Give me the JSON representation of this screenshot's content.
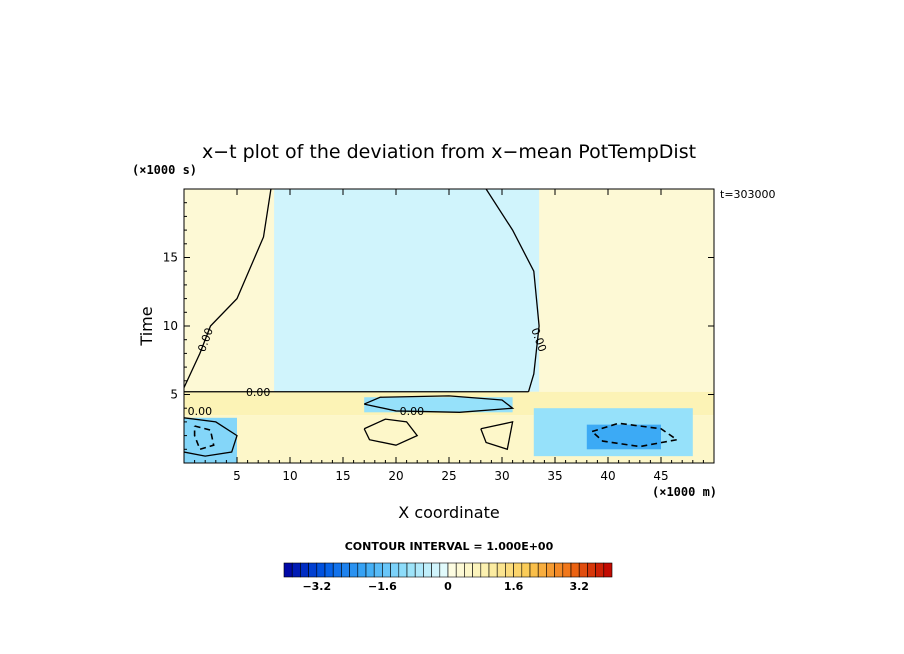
{
  "chart_data": {
    "type": "heatmap",
    "title": "x−t plot of the deviation from x−mean PotTempDist",
    "xlabel": "X coordinate",
    "ylabel": "Time",
    "x_unit": "(×1000 m)",
    "y_unit": "(×1000 s)",
    "timestamp": "t=303000",
    "xlim": [
      0,
      50
    ],
    "ylim": [
      0,
      20
    ],
    "x_ticks": [
      5,
      10,
      15,
      20,
      25,
      30,
      35,
      40,
      45
    ],
    "y_ticks": [
      5,
      10,
      15
    ],
    "contour_label": "0.00",
    "contour_interval_text": "CONTOUR INTERVAL = 1.000E+00",
    "colorbar": {
      "min": -4,
      "max": 4,
      "tick_values": [
        -3.2,
        -1.6,
        0,
        1.6,
        3.2
      ],
      "tick_labels": [
        "−3.2",
        "−1.6",
        "0",
        "1.6",
        "3.2"
      ]
    },
    "regions": [
      {
        "x0": 0,
        "x1": 50,
        "y0": 5.2,
        "y1": 20,
        "value": 0.3
      },
      {
        "x0": 8.5,
        "x1": 33.5,
        "y0": 5.2,
        "y1": 20,
        "value": -0.3
      },
      {
        "x0": 0,
        "x1": 50,
        "y0": 3.5,
        "y1": 5.2,
        "value": 0.8
      },
      {
        "x0": 0,
        "x1": 50,
        "y0": 0,
        "y1": 3.5,
        "value": 0.5
      },
      {
        "x0": 17,
        "x1": 31,
        "y0": 3.7,
        "y1": 4.8,
        "value": -1.0
      },
      {
        "x0": 0,
        "x1": 5,
        "y0": 0,
        "y1": 3.3,
        "value": -1.2
      },
      {
        "x0": 33,
        "x1": 48,
        "y0": 0.5,
        "y1": 4.0,
        "value": -1.0
      },
      {
        "x0": 38,
        "x1": 45,
        "y0": 1.0,
        "y1": 2.8,
        "value": -2.0
      }
    ],
    "contours": [
      {
        "value": 0,
        "style": "solid",
        "points": [
          [
            8.2,
            20
          ],
          [
            7.5,
            16.5
          ],
          [
            5,
            12
          ],
          [
            2.5,
            10
          ],
          [
            1.5,
            8
          ],
          [
            0,
            5.5
          ]
        ]
      },
      {
        "value": 0,
        "style": "solid",
        "points": [
          [
            28.5,
            20
          ],
          [
            31,
            17
          ],
          [
            33,
            14
          ],
          [
            33.5,
            10
          ],
          [
            33,
            6.5
          ],
          [
            32.5,
            5.2
          ]
        ]
      },
      {
        "value": 0,
        "style": "solid",
        "points": [
          [
            0,
            5.2
          ],
          [
            32.5,
            5.2
          ]
        ]
      },
      {
        "value": 0,
        "style": "solid",
        "points": [
          [
            17,
            4.3
          ],
          [
            18.5,
            4.8
          ],
          [
            25,
            4.9
          ],
          [
            30,
            4.6
          ],
          [
            31,
            4.0
          ],
          [
            26,
            3.7
          ],
          [
            20,
            3.8
          ],
          [
            17,
            4.3
          ]
        ]
      },
      {
        "value": 0,
        "style": "solid",
        "points": [
          [
            17,
            2.5
          ],
          [
            19,
            3.2
          ],
          [
            21,
            3.0
          ],
          [
            22,
            2.0
          ],
          [
            20,
            1.3
          ],
          [
            17.5,
            1.7
          ],
          [
            17,
            2.5
          ]
        ]
      },
      {
        "value": 0,
        "style": "solid",
        "points": [
          [
            28,
            2.5
          ],
          [
            31,
            3.0
          ],
          [
            30.5,
            1.0
          ],
          [
            28.5,
            1.5
          ],
          [
            28,
            2.5
          ]
        ]
      },
      {
        "value": 0,
        "style": "solid",
        "points": [
          [
            0,
            3.3
          ],
          [
            3,
            3.0
          ],
          [
            5,
            2.0
          ],
          [
            4.5,
            0.8
          ],
          [
            2,
            0.5
          ],
          [
            0,
            0.8
          ]
        ]
      },
      {
        "value": -1,
        "style": "dashed",
        "points": [
          [
            38.5,
            2.3
          ],
          [
            41,
            2.9
          ],
          [
            45,
            2.5
          ],
          [
            46.5,
            1.7
          ],
          [
            43,
            1.2
          ],
          [
            39.5,
            1.6
          ],
          [
            38.5,
            2.3
          ]
        ]
      },
      {
        "value": -1,
        "style": "dashed",
        "points": [
          [
            1,
            2.7
          ],
          [
            2.5,
            2.4
          ],
          [
            2.8,
            1.3
          ],
          [
            1.5,
            1.0
          ],
          [
            1,
            2.0
          ],
          [
            1,
            2.7
          ]
        ]
      }
    ]
  }
}
